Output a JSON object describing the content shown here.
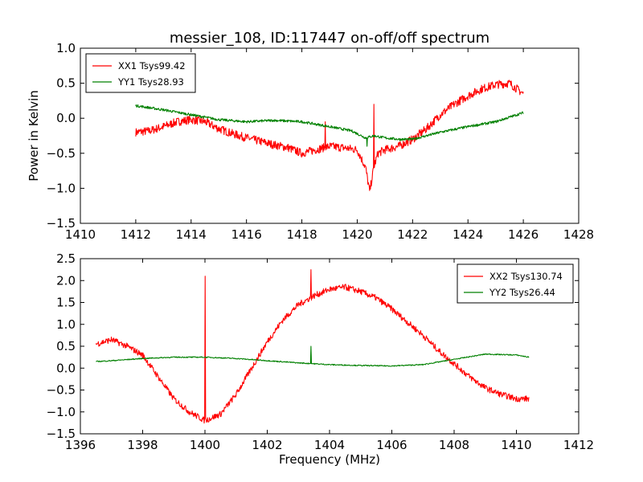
{
  "figure": {
    "title": "messier_108, ID:117447 on-off/off spectrum",
    "xlabel": "Frequency (MHz)",
    "ylabel": "Power in Kelvin"
  },
  "chart_data": [
    {
      "type": "line",
      "xlim": [
        1410,
        1428
      ],
      "ylim": [
        -1.5,
        1.0
      ],
      "xticks": [
        1410,
        1412,
        1414,
        1416,
        1418,
        1420,
        1422,
        1424,
        1426,
        1428
      ],
      "yticks": [
        -1.5,
        -1.0,
        -0.5,
        0.0,
        0.5,
        1.0
      ],
      "xtick_labels": [
        "1410",
        "1412",
        "1414",
        "1416",
        "1418",
        "1420",
        "1422",
        "1424",
        "1426",
        "1428"
      ],
      "ytick_labels": [
        "−1.5",
        "−1.0",
        "−0.5",
        "0.0",
        "0.5",
        "1.0"
      ],
      "ylabel": "Power in Kelvin",
      "legend_position": "top-left",
      "series": [
        {
          "name": "XX1 Tsys99.42",
          "color": "#ff0000",
          "x": [
            1412.0,
            1412.5,
            1413.0,
            1413.5,
            1414.0,
            1414.5,
            1415.0,
            1415.5,
            1416.0,
            1416.5,
            1417.0,
            1417.5,
            1418.0,
            1418.5,
            1419.0,
            1419.5,
            1420.0,
            1420.3,
            1420.45,
            1420.6,
            1420.75,
            1421.0,
            1421.5,
            1422.0,
            1422.5,
            1423.0,
            1423.5,
            1424.0,
            1424.5,
            1425.0,
            1425.5,
            1426.0
          ],
          "y": [
            -0.2,
            -0.18,
            -0.12,
            -0.05,
            -0.02,
            -0.05,
            -0.15,
            -0.22,
            -0.28,
            -0.33,
            -0.38,
            -0.42,
            -0.5,
            -0.45,
            -0.4,
            -0.42,
            -0.45,
            -0.7,
            -1.05,
            -0.7,
            -0.5,
            -0.45,
            -0.4,
            -0.3,
            -0.15,
            0.05,
            0.2,
            0.32,
            0.42,
            0.48,
            0.5,
            0.35
          ],
          "spikes": [
            {
              "x": 1418.85,
              "y": -0.05
            },
            {
              "x": 1420.6,
              "y": 0.2
            }
          ]
        },
        {
          "name": "YY1 Tsys28.93",
          "color": "#008000",
          "x": [
            1412.0,
            1413.0,
            1414.0,
            1415.0,
            1416.0,
            1417.0,
            1418.0,
            1419.0,
            1419.8,
            1420.3,
            1420.6,
            1421.0,
            1421.5,
            1422.0,
            1423.0,
            1424.0,
            1425.0,
            1426.0
          ],
          "y": [
            0.18,
            0.12,
            0.05,
            -0.02,
            -0.05,
            -0.03,
            -0.05,
            -0.12,
            -0.18,
            -0.28,
            -0.25,
            -0.28,
            -0.3,
            -0.3,
            -0.2,
            -0.12,
            -0.05,
            0.08
          ],
          "spikes": [
            {
              "x": 1420.35,
              "y": -0.4
            }
          ]
        }
      ]
    },
    {
      "type": "line",
      "xlim": [
        1396,
        1412
      ],
      "ylim": [
        -1.5,
        2.5
      ],
      "xticks": [
        1396,
        1398,
        1400,
        1402,
        1404,
        1406,
        1408,
        1410,
        1412
      ],
      "yticks": [
        -1.5,
        -1.0,
        -0.5,
        0.0,
        0.5,
        1.0,
        1.5,
        2.0,
        2.5
      ],
      "xtick_labels": [
        "1396",
        "1398",
        "1400",
        "1402",
        "1404",
        "1406",
        "1408",
        "1410",
        "1412"
      ],
      "ytick_labels": [
        "−1.5",
        "−1.0",
        "−0.5",
        "0.0",
        "0.5",
        "1.0",
        "1.5",
        "2.0",
        "2.5"
      ],
      "xlabel": "Frequency (MHz)",
      "legend_position": "top-right",
      "series": [
        {
          "name": "XX2 Tsys130.74",
          "color": "#ff0000",
          "x": [
            1396.5,
            1397.0,
            1397.5,
            1398.0,
            1398.5,
            1399.0,
            1399.5,
            1400.0,
            1400.5,
            1401.0,
            1401.5,
            1402.0,
            1402.5,
            1403.0,
            1403.5,
            1404.0,
            1404.5,
            1405.0,
            1405.5,
            1406.0,
            1406.5,
            1407.0,
            1407.5,
            1408.0,
            1408.5,
            1409.0,
            1409.5,
            1410.0,
            1410.4
          ],
          "y": [
            0.55,
            0.65,
            0.5,
            0.3,
            -0.2,
            -0.7,
            -1.0,
            -1.2,
            -1.05,
            -0.6,
            0.0,
            0.6,
            1.1,
            1.45,
            1.65,
            1.8,
            1.85,
            1.75,
            1.6,
            1.35,
            1.05,
            0.75,
            0.4,
            0.1,
            -0.2,
            -0.45,
            -0.6,
            -0.7,
            -0.7
          ],
          "spikes": [
            {
              "x": 1400.0,
              "y": 2.1
            },
            {
              "x": 1403.4,
              "y": 2.25
            }
          ]
        },
        {
          "name": "YY2 Tsys26.44",
          "color": "#008000",
          "x": [
            1396.5,
            1397.0,
            1398.0,
            1399.0,
            1400.0,
            1401.0,
            1402.0,
            1403.0,
            1404.0,
            1405.0,
            1406.0,
            1407.0,
            1408.0,
            1409.0,
            1410.0,
            1410.4
          ],
          "y": [
            0.15,
            0.17,
            0.22,
            0.25,
            0.25,
            0.22,
            0.17,
            0.12,
            0.08,
            0.06,
            0.05,
            0.08,
            0.2,
            0.32,
            0.3,
            0.25
          ],
          "spikes": [
            {
              "x": 1403.4,
              "y": 0.5
            }
          ]
        }
      ]
    }
  ]
}
